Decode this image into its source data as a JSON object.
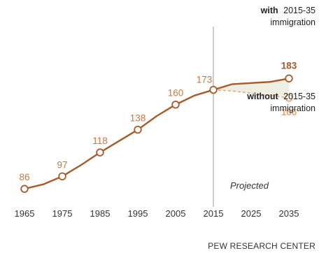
{
  "chart_data": {
    "type": "line",
    "x": [
      1965,
      1970,
      1975,
      1980,
      1985,
      1990,
      1995,
      2000,
      2005,
      2010,
      2015,
      2020,
      2025,
      2030,
      2035
    ],
    "series": [
      {
        "key": "with",
        "x": [
          1965,
          1970,
          1975,
          1980,
          1985,
          1990,
          1995,
          2000,
          2005,
          2010,
          2015,
          2020,
          2025,
          2030,
          2035
        ],
        "values": [
          86,
          90,
          97,
          107,
          118,
          128,
          138,
          150,
          160,
          168,
          173,
          178,
          179,
          180,
          183
        ]
      },
      {
        "key": "without",
        "x": [
          2015,
          2020,
          2025,
          2030,
          2035
        ],
        "values": [
          173,
          172,
          170,
          168,
          166
        ]
      }
    ],
    "marker_points": [
      {
        "series": "with",
        "x": 1965,
        "label": "86"
      },
      {
        "series": "with",
        "x": 1975,
        "label": "97"
      },
      {
        "series": "with",
        "x": 1985,
        "label": "118"
      },
      {
        "series": "with",
        "x": 1995,
        "label": "138"
      },
      {
        "series": "with",
        "x": 2005,
        "label": "160"
      },
      {
        "series": "with",
        "x": 2015,
        "label": "173"
      },
      {
        "series": "with",
        "x": 2035,
        "label": "183"
      },
      {
        "series": "without",
        "x": 2035,
        "label": "166"
      }
    ],
    "x_ticks": [
      "1965",
      "1975",
      "1985",
      "1995",
      "2005",
      "2015",
      "2025",
      "2035"
    ],
    "xlim": [
      1965,
      2035
    ],
    "ylim": [
      80,
      220
    ],
    "projection_start": 2015,
    "grid": false,
    "colors": {
      "with": "#a75a2a",
      "without": "#e8a97a",
      "gap_fill": "#eeeee2",
      "divider": "#999999"
    }
  },
  "annotations": {
    "with_bold": "with",
    "with_rest": "2015-35",
    "with_line2": "immigration",
    "without_bold": "without",
    "without_rest": "2015-35",
    "without_line2": "immigration",
    "projected": "Projected"
  },
  "source": "PEW RESEARCH CENTER"
}
